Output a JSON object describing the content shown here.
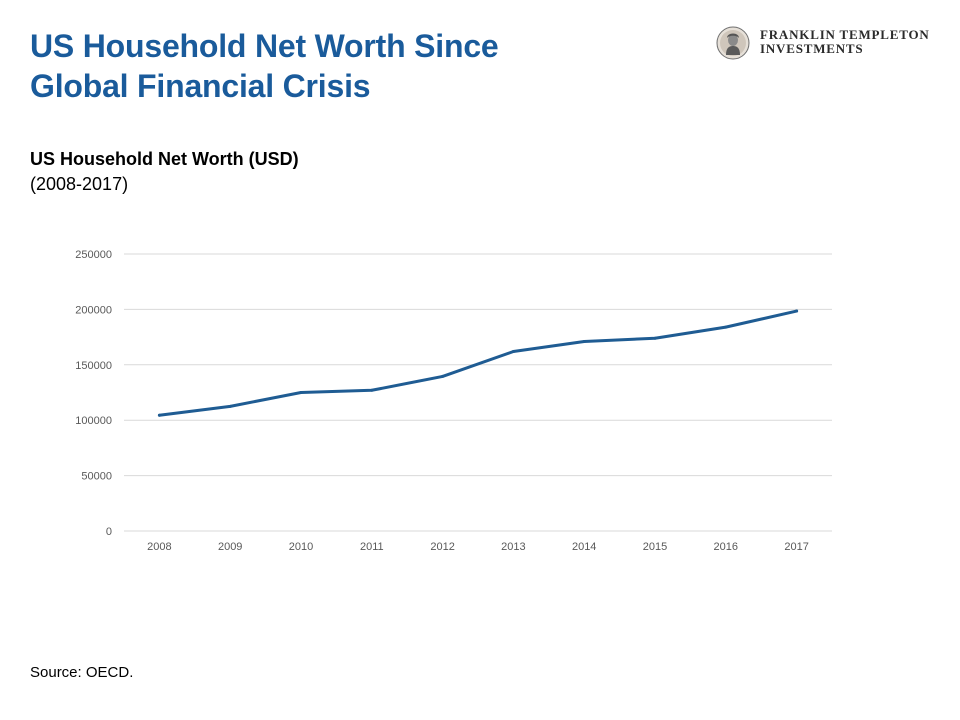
{
  "slide": {
    "title_line1": "US Household Net Worth Since",
    "title_line2": "Global Financial Crisis",
    "source": "Source: OECD."
  },
  "logo": {
    "line1": "FRANKLIN TEMPLETON",
    "line2": "INVESTMENTS",
    "icon": "franklin-portrait-seal-icon"
  },
  "colors": {
    "title": "#1a5b9b",
    "series": "#1f5c93",
    "grid": "#d9d9d9",
    "tick": "#595959"
  },
  "chart_data": {
    "type": "line",
    "title": "US Household Net Worth (USD)",
    "subtitle": "(2008-2017)",
    "xlabel": "",
    "ylabel": "",
    "categories": [
      "2008",
      "2009",
      "2010",
      "2011",
      "2012",
      "2013",
      "2014",
      "2015",
      "2016",
      "2017"
    ],
    "series": [
      {
        "values": [
          104500,
          112500,
          125000,
          127000,
          139500,
          162000,
          171000,
          174000,
          184000,
          198500
        ]
      }
    ],
    "ylim": [
      0,
      250000
    ],
    "yticks": [
      0,
      50000,
      100000,
      150000,
      200000,
      250000
    ],
    "grid": true,
    "legend": "none"
  }
}
